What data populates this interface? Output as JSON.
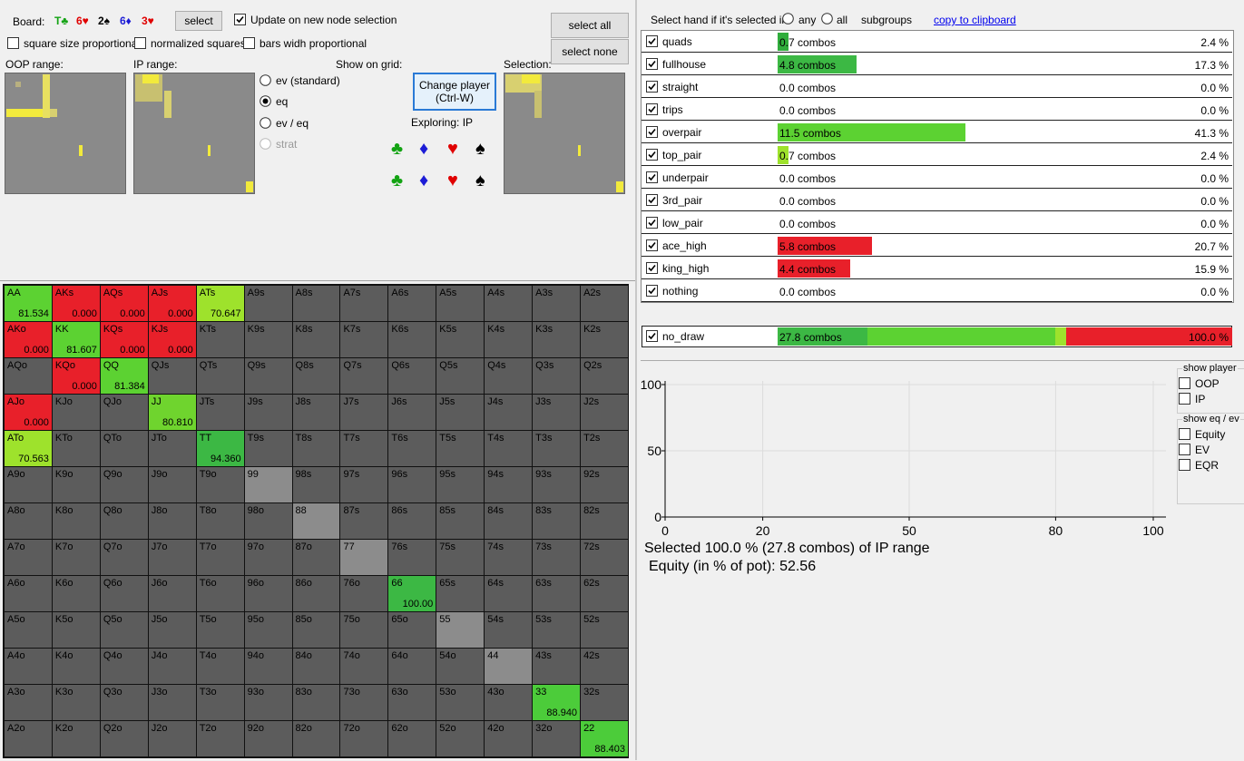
{
  "board": {
    "label": "Board:",
    "cards": [
      {
        "text": "T♣",
        "color": "#13a313"
      },
      {
        "text": "6♥",
        "color": "#e00000"
      },
      {
        "text": "2♠",
        "color": "#000000"
      },
      {
        "text": "6♦",
        "color": "#1c1cd6"
      },
      {
        "text": "3♥",
        "color": "#e00000"
      }
    ],
    "button": "select"
  },
  "update_checkbox": {
    "label": "Update on new node selection",
    "checked": true
  },
  "checkboxes": [
    {
      "label": "square size proportional",
      "checked": false
    },
    {
      "label": "normalized squares",
      "checked": false
    },
    {
      "label": "bars widh proportional",
      "checked": false
    }
  ],
  "buttons": {
    "select_all": "select all",
    "select_none": "select none"
  },
  "range_labels": {
    "oop": "OOP range:",
    "ip": "IP range:",
    "selection": "Selection:"
  },
  "show_on_grid": {
    "label": "Show on grid:",
    "options": [
      {
        "label": "ev (standard)",
        "selected": false,
        "enabled": true
      },
      {
        "label": "eq",
        "selected": true,
        "enabled": true
      },
      {
        "label": "ev / eq",
        "selected": false,
        "enabled": true
      },
      {
        "label": "strat",
        "selected": false,
        "enabled": false
      }
    ]
  },
  "change_player": {
    "label": "Change player",
    "shortcut": "(Ctrl-W)"
  },
  "exploring": "Exploring: IP",
  "suit_buttons": [
    [
      {
        "symbol": "♣",
        "color": "#13a313"
      },
      {
        "symbol": "♦",
        "color": "#1c1cd6"
      },
      {
        "symbol": "♥",
        "color": "#e00000"
      },
      {
        "symbol": "♠",
        "color": "#000000"
      }
    ],
    [
      {
        "symbol": "♣",
        "color": "#13a313"
      },
      {
        "symbol": "♦",
        "color": "#1c1cd6"
      },
      {
        "symbol": "♥",
        "color": "#e00000"
      },
      {
        "symbol": "♠",
        "color": "#000000"
      }
    ]
  ],
  "hand_grid": {
    "default_color": "#5c5c5c",
    "rows": [
      [
        "AA",
        "AKs",
        "AQs",
        "AJs",
        "ATs",
        "A9s",
        "A8s",
        "A7s",
        "A6s",
        "A5s",
        "A4s",
        "A3s",
        "A2s"
      ],
      [
        "AKo",
        "KK",
        "KQs",
        "KJs",
        "KTs",
        "K9s",
        "K8s",
        "K7s",
        "K6s",
        "K5s",
        "K4s",
        "K3s",
        "K2s"
      ],
      [
        "AQo",
        "KQo",
        "QQ",
        "QJs",
        "QTs",
        "Q9s",
        "Q8s",
        "Q7s",
        "Q6s",
        "Q5s",
        "Q4s",
        "Q3s",
        "Q2s"
      ],
      [
        "AJo",
        "KJo",
        "QJo",
        "JJ",
        "JTs",
        "J9s",
        "J8s",
        "J7s",
        "J6s",
        "J5s",
        "J4s",
        "J3s",
        "J2s"
      ],
      [
        "ATo",
        "KTo",
        "QTo",
        "JTo",
        "TT",
        "T9s",
        "T8s",
        "T7s",
        "T6s",
        "T5s",
        "T4s",
        "T3s",
        "T2s"
      ],
      [
        "A9o",
        "K9o",
        "Q9o",
        "J9o",
        "T9o",
        "99",
        "98s",
        "97s",
        "96s",
        "95s",
        "94s",
        "93s",
        "92s"
      ],
      [
        "A8o",
        "K8o",
        "Q8o",
        "J8o",
        "T8o",
        "98o",
        "88",
        "87s",
        "86s",
        "85s",
        "84s",
        "83s",
        "82s"
      ],
      [
        "A7o",
        "K7o",
        "Q7o",
        "J7o",
        "T7o",
        "97o",
        "87o",
        "77",
        "76s",
        "75s",
        "74s",
        "73s",
        "72s"
      ],
      [
        "A6o",
        "K6o",
        "Q6o",
        "J6o",
        "T6o",
        "96o",
        "86o",
        "76o",
        "66",
        "65s",
        "64s",
        "63s",
        "62s"
      ],
      [
        "A5o",
        "K5o",
        "Q5o",
        "J5o",
        "T5o",
        "95o",
        "85o",
        "75o",
        "65o",
        "55",
        "54s",
        "53s",
        "52s"
      ],
      [
        "A4o",
        "K4o",
        "Q4o",
        "J4o",
        "T4o",
        "94o",
        "84o",
        "74o",
        "64o",
        "54o",
        "44",
        "43s",
        "42s"
      ],
      [
        "A3o",
        "K3o",
        "Q3o",
        "J3o",
        "T3o",
        "93o",
        "83o",
        "73o",
        "63o",
        "53o",
        "43o",
        "33",
        "32s"
      ],
      [
        "A2o",
        "K2o",
        "Q2o",
        "J2o",
        "T2o",
        "92o",
        "82o",
        "72o",
        "62o",
        "52o",
        "42o",
        "32o",
        "22"
      ]
    ],
    "highlights": [
      {
        "row": 0,
        "col": 0,
        "color": "#5cd232",
        "value": "81.534"
      },
      {
        "row": 0,
        "col": 1,
        "color": "#e8202a",
        "value": "0.000"
      },
      {
        "row": 0,
        "col": 2,
        "color": "#e8202a",
        "value": "0.000"
      },
      {
        "row": 0,
        "col": 3,
        "color": "#e8202a",
        "value": "0.000"
      },
      {
        "row": 0,
        "col": 4,
        "color": "#9ee22c",
        "value": "70.647"
      },
      {
        "row": 1,
        "col": 0,
        "color": "#e8202a",
        "value": "0.000"
      },
      {
        "row": 1,
        "col": 1,
        "color": "#5cd232",
        "value": "81.607"
      },
      {
        "row": 1,
        "col": 2,
        "color": "#e8202a",
        "value": "0.000"
      },
      {
        "row": 1,
        "col": 3,
        "color": "#e8202a",
        "value": "0.000"
      },
      {
        "row": 2,
        "col": 1,
        "color": "#e8202a",
        "value": "0.000"
      },
      {
        "row": 2,
        "col": 2,
        "color": "#5cd232",
        "value": "81.384"
      },
      {
        "row": 3,
        "col": 0,
        "color": "#e8202a",
        "value": "0.000"
      },
      {
        "row": 3,
        "col": 3,
        "color": "#6fd42e",
        "value": "80.810"
      },
      {
        "row": 4,
        "col": 0,
        "color": "#9ee22c",
        "value": "70.563"
      },
      {
        "row": 4,
        "col": 4,
        "color": "#3cb844",
        "value": "94.360"
      },
      {
        "row": 5,
        "col": 5,
        "color": "#8c8c8c"
      },
      {
        "row": 6,
        "col": 6,
        "color": "#8c8c8c"
      },
      {
        "row": 7,
        "col": 7,
        "color": "#8c8c8c"
      },
      {
        "row": 8,
        "col": 8,
        "color": "#3cb844",
        "value": "100.00"
      },
      {
        "row": 9,
        "col": 9,
        "color": "#8c8c8c"
      },
      {
        "row": 10,
        "col": 10,
        "color": "#8c8c8c"
      },
      {
        "row": 11,
        "col": 11,
        "color": "#4ccc3a",
        "value": "88.940"
      },
      {
        "row": 12,
        "col": 12,
        "color": "#4ccc3a",
        "value": "88.403"
      }
    ]
  },
  "selector": {
    "label": "Select hand if it's selected in",
    "options": [
      {
        "label": "any",
        "selected": false
      },
      {
        "label": "all",
        "selected": false
      }
    ],
    "subgroups": "subgroups",
    "link": "copy to clipboard"
  },
  "categories": [
    {
      "name": "quads",
      "checked": true,
      "combos": "0.7 combos",
      "percent": 2.4,
      "percent_label": "2.4 %",
      "color": "#30ad3c"
    },
    {
      "name": "fullhouse",
      "checked": true,
      "combos": "4.8 combos",
      "percent": 17.3,
      "percent_label": "17.3 %",
      "color": "#3cb844"
    },
    {
      "name": "straight",
      "checked": true,
      "combos": "0.0 combos",
      "percent": 0.0,
      "percent_label": "0.0 %"
    },
    {
      "name": "trips",
      "checked": true,
      "combos": "0.0 combos",
      "percent": 0.0,
      "percent_label": "0.0 %"
    },
    {
      "name": "overpair",
      "checked": true,
      "combos": "11.5 combos",
      "percent": 41.3,
      "percent_label": "41.3 %",
      "color": "#5cd232"
    },
    {
      "name": "top_pair",
      "checked": true,
      "combos": "0.7 combos",
      "percent": 2.4,
      "percent_label": "2.4 %",
      "color": "#9ee22c"
    },
    {
      "name": "underpair",
      "checked": true,
      "combos": "0.0 combos",
      "percent": 0.0,
      "percent_label": "0.0 %"
    },
    {
      "name": "3rd_pair",
      "checked": true,
      "combos": "0.0 combos",
      "percent": 0.0,
      "percent_label": "0.0 %"
    },
    {
      "name": "low_pair",
      "checked": true,
      "combos": "0.0 combos",
      "percent": 0.0,
      "percent_label": "0.0 %"
    },
    {
      "name": "ace_high",
      "checked": true,
      "combos": "5.8 combos",
      "percent": 20.7,
      "percent_label": "20.7 %",
      "color": "#e8202a"
    },
    {
      "name": "king_high",
      "checked": true,
      "combos": "4.4 combos",
      "percent": 15.9,
      "percent_label": "15.9 %",
      "color": "#e8202a"
    },
    {
      "name": "nothing",
      "checked": true,
      "combos": "0.0 combos",
      "percent": 0.0,
      "percent_label": "0.0 %"
    }
  ],
  "no_draw": {
    "name": "no_draw",
    "checked": true,
    "combos": "27.8 combos",
    "percent_label": "100.0 %",
    "segments": [
      {
        "value": 19.7,
        "color": "#3cb844"
      },
      {
        "value": 41.3,
        "color": "#5cd232"
      },
      {
        "value": 2.4,
        "color": "#9ee22c"
      },
      {
        "value": 36.6,
        "color": "#e8202a"
      }
    ]
  },
  "equity_chart": {
    "xlim": [
      0,
      100
    ],
    "ylim": [
      0,
      100
    ],
    "xticks": [
      0,
      20,
      50,
      80,
      100
    ],
    "yticks": [
      0,
      50,
      100
    ],
    "grid": true
  },
  "summary": {
    "selection": "Selected 100.0 % (27.8 combos) of IP range",
    "equity": "Equity (in % of pot): 52.56"
  },
  "show_player": {
    "title": "show player",
    "options": [
      {
        "label": "OOP",
        "checked": false
      },
      {
        "label": "IP",
        "checked": false
      }
    ]
  },
  "show_eq_ev": {
    "title": "show eq / ev",
    "options": [
      {
        "label": "Equity",
        "checked": false
      },
      {
        "label": "EV",
        "checked": false
      },
      {
        "label": "EQR",
        "checked": false
      }
    ]
  }
}
